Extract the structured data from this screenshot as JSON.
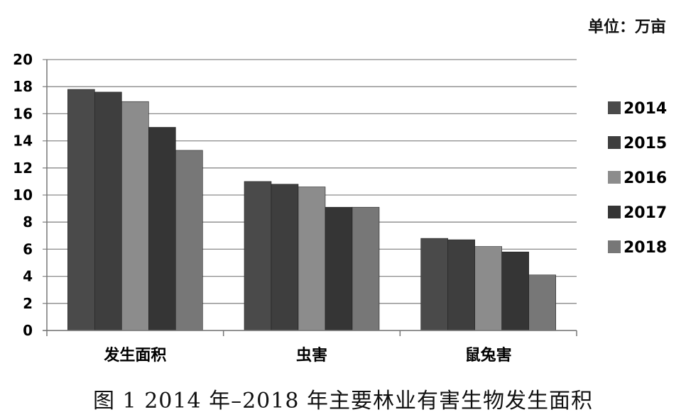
{
  "unit_label": "单位：万亩",
  "caption": "图 1 2014 年–2018 年主要林业有害生物发生面积",
  "chart_data": {
    "type": "bar",
    "categories": [
      "发生面积",
      "虫害",
      "鼠兔害"
    ],
    "series": [
      {
        "name": "2014",
        "values": [
          17.8,
          11.0,
          6.8
        ],
        "color": "#4a4a4a"
      },
      {
        "name": "2015",
        "values": [
          17.6,
          10.8,
          6.7
        ],
        "color": "#3e3e3e"
      },
      {
        "name": "2016",
        "values": [
          16.9,
          10.6,
          6.2
        ],
        "color": "#8c8c8c"
      },
      {
        "name": "2017",
        "values": [
          15.0,
          9.1,
          5.8
        ],
        "color": "#353535"
      },
      {
        "name": "2018",
        "values": [
          13.3,
          9.1,
          4.1
        ],
        "color": "#777777"
      }
    ],
    "ylim": [
      0,
      20
    ],
    "yticks": [
      "0",
      "2",
      "4",
      "6",
      "8",
      "10",
      "12",
      "14",
      "16",
      "18",
      "20"
    ],
    "grid": true,
    "legend_position": "right"
  }
}
